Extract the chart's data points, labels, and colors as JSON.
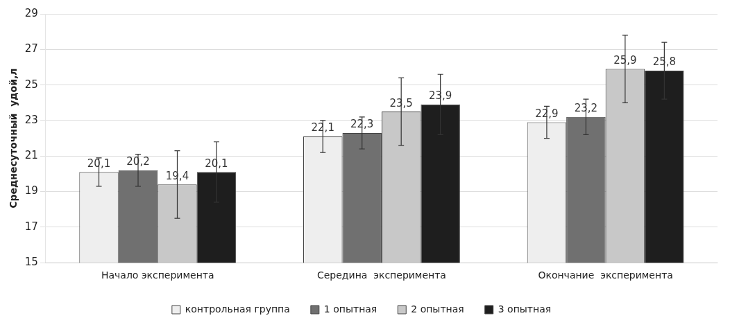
{
  "chart_data": {
    "type": "bar",
    "ylabel": "Среднесуточный  удой,л",
    "categories": [
      "Начало эксперимента",
      "Середина  эксперимента",
      "Окончание  эксперимента"
    ],
    "series": [
      {
        "name": "контрольная группа",
        "color": "#eeeeee",
        "values": [
          20.1,
          22.1,
          22.9
        ],
        "errors": [
          0.8,
          0.9,
          0.9
        ],
        "value_labels": [
          "20,1",
          "22,1",
          "22,9"
        ]
      },
      {
        "name": "1 опытная",
        "color": "#707070",
        "values": [
          20.2,
          22.3,
          23.2
        ],
        "errors": [
          0.9,
          0.9,
          1.0
        ],
        "value_labels": [
          "20,2",
          "22,3",
          "23,2"
        ]
      },
      {
        "name": "2 опытная",
        "color": "#c8c8c8",
        "values": [
          19.4,
          23.5,
          25.9
        ],
        "errors": [
          1.9,
          1.9,
          1.9
        ],
        "value_labels": [
          "19,4",
          "23,5",
          "25,9"
        ]
      },
      {
        "name": "3 опытная",
        "color": "#1e1e1e",
        "values": [
          20.1,
          23.9,
          25.8
        ],
        "errors": [
          1.7,
          1.7,
          1.6
        ],
        "value_labels": [
          "20,1",
          "23,9",
          "25,8"
        ]
      }
    ],
    "ylim": [
      15,
      29
    ],
    "yticks": [
      15,
      17,
      19,
      21,
      23,
      25,
      27,
      29
    ],
    "grid": "y",
    "legend": "bottom"
  }
}
